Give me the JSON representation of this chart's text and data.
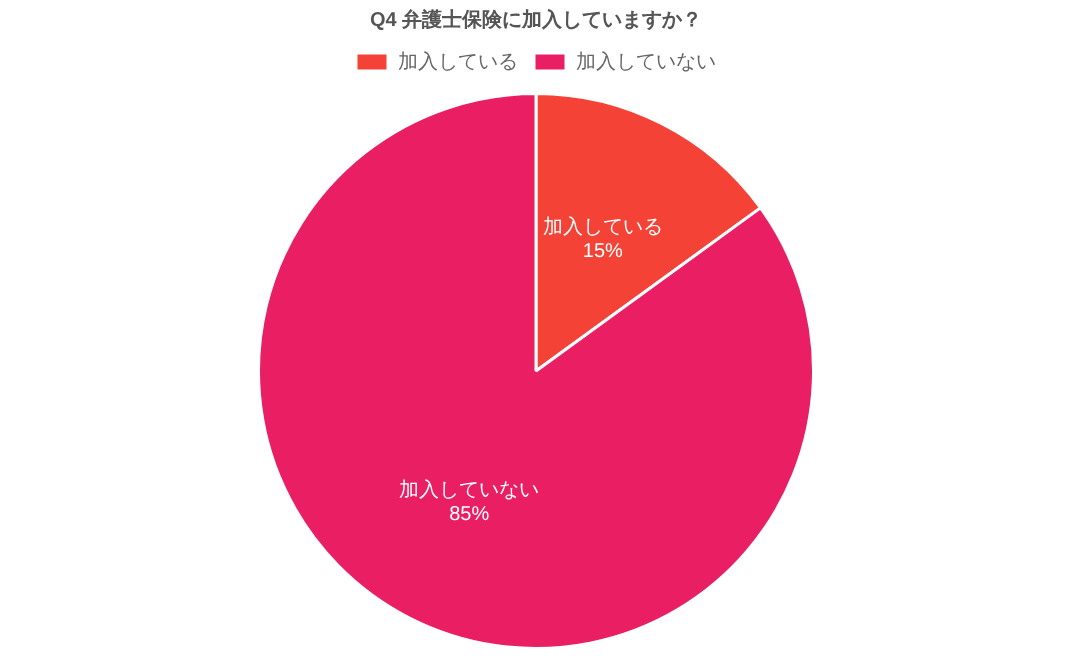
{
  "chart_data": {
    "type": "pie",
    "title": "Q4 弁護士保険に加入していますか？",
    "categories": [
      "加入している",
      "加入していない"
    ],
    "values": [
      15,
      85
    ],
    "colors": [
      "#f44336",
      "#e91e63"
    ],
    "value_labels": [
      "15%",
      "85%"
    ],
    "legend": "top"
  }
}
